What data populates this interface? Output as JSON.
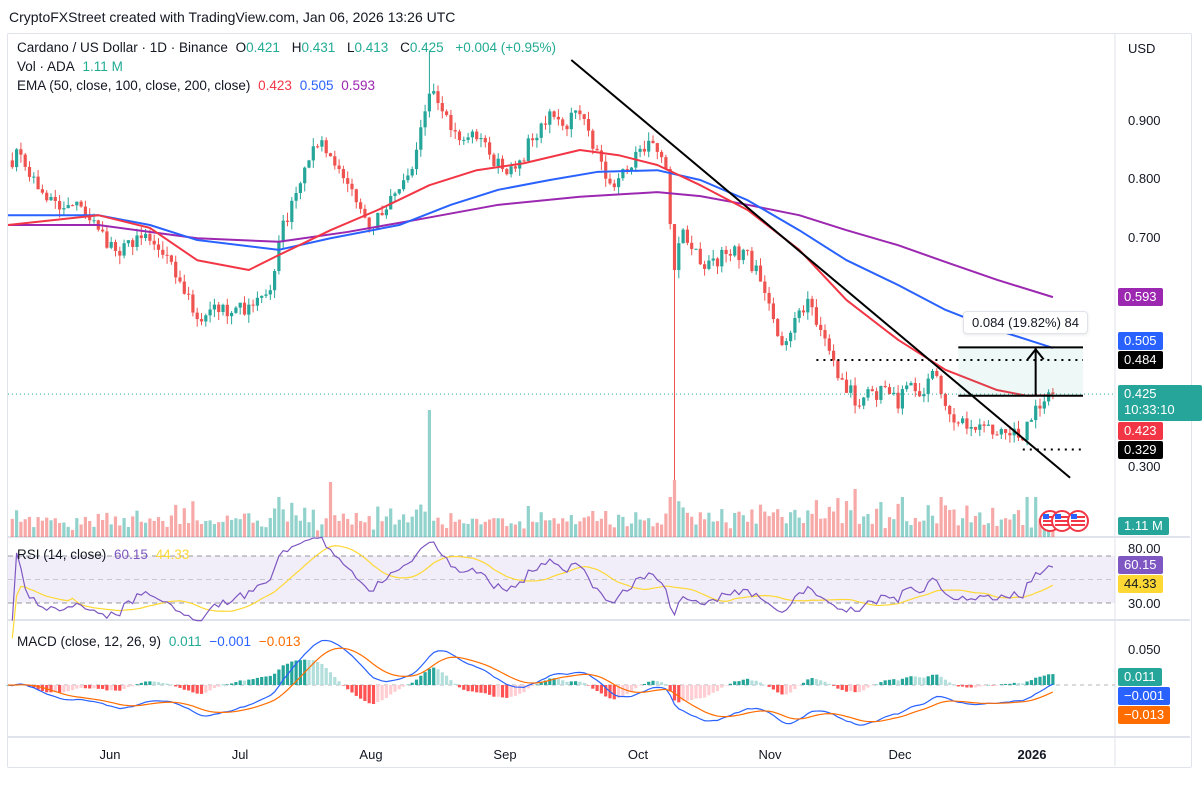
{
  "attribution": "CryptoFXStreet created with TradingView.com, Jan 06, 2026 13:26 UTC",
  "legend": {
    "symbol": "Cardano / US Dollar · 1D · Binance",
    "o_label": "O",
    "o": "0.421",
    "h_label": "H",
    "h": "0.431",
    "l_label": "L",
    "l": "0.413",
    "c_label": "C",
    "c": "0.425",
    "change": "+0.004 (+0.95%)",
    "vol_label": "Vol · ADA",
    "vol": "1.11 M",
    "ema_label": "EMA (50, close, 100, close, 200, close)",
    "ema50": "0.423",
    "ema100": "0.505",
    "ema200": "0.593",
    "rsi_label": "RSI (14, close)",
    "rsi": "60.15",
    "rsi_ma": "44.33",
    "macd_label": "MACD (close, 12, 26, 9)",
    "macd_hist": "0.011",
    "macd": "−0.001",
    "macd_signal": "−0.013"
  },
  "price_axis": {
    "currency": "USD",
    "ticks": [
      "0.900",
      "0.800",
      "0.700",
      "0.300"
    ],
    "badges": {
      "ema200": "0.593",
      "ema100": "0.505",
      "level_high": "0.484",
      "last": "0.425",
      "countdown": "10:33:10",
      "ema50": "0.423",
      "level_low": "0.329",
      "volume": "1.11 M"
    }
  },
  "rsi_axis": {
    "ticks": [
      "80.00",
      "30.00"
    ],
    "rsi": "60.15",
    "rsi_ma": "44.33"
  },
  "macd_axis": {
    "ticks": [
      "0.050"
    ],
    "hist": "0.011",
    "macd": "−0.001",
    "signal": "−0.013"
  },
  "time_axis": [
    "Jun",
    "Jul",
    "Aug",
    "Sep",
    "Oct",
    "Nov",
    "Dec",
    "2026"
  ],
  "measure_label": "0.084 (19.82%) 84",
  "colors": {
    "up": "#26a69a",
    "down": "#ef5350",
    "ema50": "#f23645",
    "ema100": "#2962ff",
    "ema200": "#9c27b0",
    "rsi": "#7e57c2",
    "rsi_ma": "#fdd835",
    "macd": "#2962ff",
    "signal": "#ff6d00"
  },
  "chart_data": {
    "type": "candlestick",
    "title": "Cardano / US Dollar · 1D · Binance",
    "ylim": [
      0.25,
      1.0
    ],
    "closes": [
      [
        "2025-05-08",
        0.83
      ],
      [
        "2025-05-11",
        0.84
      ],
      [
        "2025-05-15",
        0.78
      ],
      [
        "2025-05-20",
        0.745
      ],
      [
        "2025-05-25",
        0.75
      ],
      [
        "2025-05-29",
        0.71
      ],
      [
        "2025-06-03",
        0.665
      ],
      [
        "2025-06-07",
        0.7
      ],
      [
        "2025-06-12",
        0.675
      ],
      [
        "2025-06-17",
        0.62
      ],
      [
        "2025-06-21",
        0.555
      ],
      [
        "2025-06-25",
        0.58
      ],
      [
        "2025-06-28",
        0.56
      ],
      [
        "2025-07-03",
        0.58
      ],
      [
        "2025-07-08",
        0.605
      ],
      [
        "2025-07-10",
        0.69
      ],
      [
        "2025-07-13",
        0.76
      ],
      [
        "2025-07-17",
        0.83
      ],
      [
        "2025-07-20",
        0.865
      ],
      [
        "2025-07-24",
        0.815
      ],
      [
        "2025-07-27",
        0.78
      ],
      [
        "2025-07-31",
        0.71
      ],
      [
        "2025-08-03",
        0.735
      ],
      [
        "2025-08-07",
        0.78
      ],
      [
        "2025-08-10",
        0.815
      ],
      [
        "2025-08-13",
        0.915
      ],
      [
        "2025-08-15",
        0.95
      ],
      [
        "2025-08-17",
        0.915
      ],
      [
        "2025-08-21",
        0.865
      ],
      [
        "2025-08-24",
        0.88
      ],
      [
        "2025-08-28",
        0.84
      ],
      [
        "2025-08-31",
        0.815
      ],
      [
        "2025-09-04",
        0.83
      ],
      [
        "2025-09-07",
        0.865
      ],
      [
        "2025-09-11",
        0.915
      ],
      [
        "2025-09-14",
        0.89
      ],
      [
        "2025-09-18",
        0.91
      ],
      [
        "2025-09-21",
        0.85
      ],
      [
        "2025-09-25",
        0.79
      ],
      [
        "2025-09-28",
        0.815
      ],
      [
        "2025-10-02",
        0.85
      ],
      [
        "2025-10-05",
        0.86
      ],
      [
        "2025-10-08",
        0.815
      ],
      [
        "2025-10-10",
        0.64
      ],
      [
        "2025-10-12",
        0.71
      ],
      [
        "2025-10-16",
        0.65
      ],
      [
        "2025-10-19",
        0.66
      ],
      [
        "2025-10-23",
        0.665
      ],
      [
        "2025-10-26",
        0.675
      ],
      [
        "2025-10-30",
        0.62
      ],
      [
        "2025-11-02",
        0.555
      ],
      [
        "2025-11-04",
        0.51
      ],
      [
        "2025-11-08",
        0.57
      ],
      [
        "2025-11-10",
        0.59
      ],
      [
        "2025-11-12",
        0.545
      ],
      [
        "2025-11-15",
        0.5
      ],
      [
        "2025-11-18",
        0.45
      ],
      [
        "2025-11-22",
        0.405
      ],
      [
        "2025-11-25",
        0.43
      ],
      [
        "2025-11-29",
        0.425
      ],
      [
        "2025-12-01",
        0.4
      ],
      [
        "2025-12-03",
        0.44
      ],
      [
        "2025-12-07",
        0.425
      ],
      [
        "2025-12-09",
        0.465
      ],
      [
        "2025-12-11",
        0.425
      ],
      [
        "2025-12-13",
        0.39
      ],
      [
        "2025-12-17",
        0.365
      ],
      [
        "2025-12-21",
        0.37
      ],
      [
        "2025-12-24",
        0.355
      ],
      [
        "2025-12-28",
        0.365
      ],
      [
        "2025-12-30",
        0.345
      ],
      [
        "2026-01-01",
        0.38
      ],
      [
        "2026-01-03",
        0.4
      ],
      [
        "2026-01-06",
        0.425
      ]
    ],
    "wick_extremes": [
      {
        "date": "2025-10-10",
        "low": 0.276
      },
      {
        "date": "2025-08-14",
        "high": 1.02
      }
    ],
    "volume_spikes": [
      "2025-08-14",
      "2025-10-10",
      "2025-07-22",
      "2025-11-21"
    ],
    "ema50": [
      [
        "2025-05-08",
        0.718
      ],
      [
        "2025-05-29",
        0.735
      ],
      [
        "2025-06-10",
        0.713
      ],
      [
        "2025-06-21",
        0.657
      ],
      [
        "2025-07-03",
        0.64
      ],
      [
        "2025-07-10",
        0.666
      ],
      [
        "2025-07-22",
        0.709
      ],
      [
        "2025-08-02",
        0.744
      ],
      [
        "2025-08-14",
        0.787
      ],
      [
        "2025-08-25",
        0.813
      ],
      [
        "2025-09-05",
        0.825
      ],
      [
        "2025-09-18",
        0.848
      ],
      [
        "2025-09-27",
        0.839
      ],
      [
        "2025-10-06",
        0.822
      ],
      [
        "2025-10-16",
        0.787
      ],
      [
        "2025-10-27",
        0.744
      ],
      [
        "2025-11-08",
        0.675
      ],
      [
        "2025-11-19",
        0.588
      ],
      [
        "2025-12-01",
        0.519
      ],
      [
        "2025-12-12",
        0.467
      ],
      [
        "2025-12-24",
        0.432
      ],
      [
        "2025-12-31",
        0.422
      ],
      [
        "2026-01-06",
        0.423
      ]
    ],
    "ema100": [
      [
        "2025-05-08",
        0.735
      ],
      [
        "2025-05-29",
        0.735
      ],
      [
        "2025-06-10",
        0.718
      ],
      [
        "2025-06-21",
        0.692
      ],
      [
        "2025-07-10",
        0.675
      ],
      [
        "2025-07-22",
        0.695
      ],
      [
        "2025-08-07",
        0.718
      ],
      [
        "2025-08-19",
        0.753
      ],
      [
        "2025-08-30",
        0.779
      ],
      [
        "2025-09-11",
        0.796
      ],
      [
        "2025-09-22",
        0.81
      ],
      [
        "2025-10-06",
        0.813
      ],
      [
        "2025-10-16",
        0.796
      ],
      [
        "2025-10-27",
        0.761
      ],
      [
        "2025-11-08",
        0.709
      ],
      [
        "2025-11-19",
        0.657
      ],
      [
        "2025-12-01",
        0.614
      ],
      [
        "2025-12-12",
        0.571
      ],
      [
        "2025-12-24",
        0.536
      ],
      [
        "2026-01-06",
        0.505
      ]
    ],
    "ema200": [
      [
        "2025-05-08",
        0.718
      ],
      [
        "2025-05-29",
        0.718
      ],
      [
        "2025-06-21",
        0.695
      ],
      [
        "2025-07-10",
        0.689
      ],
      [
        "2025-07-26",
        0.706
      ],
      [
        "2025-08-11",
        0.727
      ],
      [
        "2025-08-30",
        0.753
      ],
      [
        "2025-09-18",
        0.767
      ],
      [
        "2025-10-06",
        0.775
      ],
      [
        "2025-10-16",
        0.768
      ],
      [
        "2025-10-27",
        0.753
      ],
      [
        "2025-11-08",
        0.735
      ],
      [
        "2025-11-19",
        0.709
      ],
      [
        "2025-12-01",
        0.683
      ],
      [
        "2025-12-12",
        0.654
      ],
      [
        "2025-12-24",
        0.623
      ],
      [
        "2026-01-06",
        0.593
      ]
    ],
    "trendline": [
      [
        "2025-09-16",
        1.004
      ],
      [
        "2026-01-10",
        0.28
      ]
    ],
    "measure": {
      "from_date": "2025-12-15",
      "to_date": "2026-01-13",
      "from_price": 0.422,
      "to_price": 0.506
    },
    "horizontal_levels": [
      {
        "price": 0.484,
        "from": "2025-11-12"
      },
      {
        "price": 0.329,
        "from": "2025-12-30"
      }
    ],
    "last_price": 0.425
  }
}
